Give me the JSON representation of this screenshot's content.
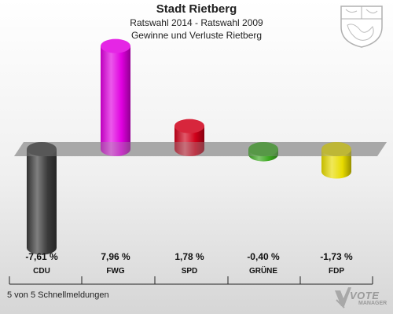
{
  "header": {
    "title": "Stadt Rietberg",
    "subtitle": "Ratswahl 2014 - Ratswahl 2009",
    "subtitle2": "Gewinne und Verluste Rietberg"
  },
  "footer": {
    "note": "5 von 5 Schnellmeldungen"
  },
  "logo": {
    "line1": "VOTE",
    "line2": "MANAGER"
  },
  "chart_data": {
    "type": "bar",
    "title": "Stadt Rietberg",
    "subtitle": "Ratswahl 2014 - Ratswahl 2009",
    "categories": [
      "CDU",
      "FWG",
      "SPD",
      "GRÜNE",
      "FDP"
    ],
    "values": [
      -7.61,
      7.96,
      1.78,
      -0.4,
      -1.73
    ],
    "value_labels": [
      "-7,61 %",
      "7,96 %",
      "1,78 %",
      "-0,40 %",
      "-1,73 %"
    ],
    "colors": [
      "#3a3a3a",
      "#e000e0",
      "#d0001a",
      "#3aa81e",
      "#e8dc00"
    ],
    "xlabel": "",
    "ylabel": "",
    "grid": false
  }
}
